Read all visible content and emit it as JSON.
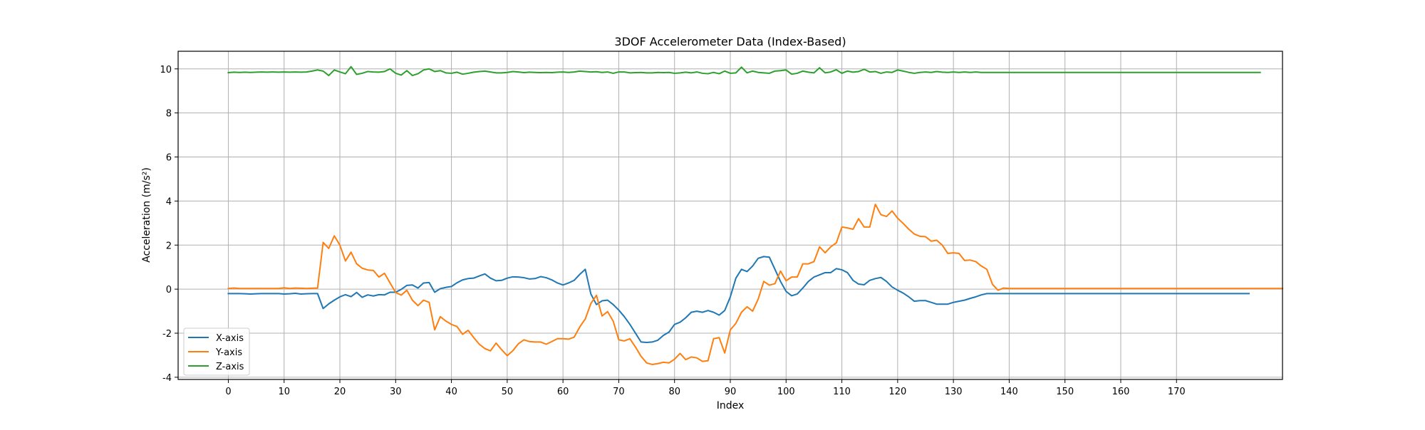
{
  "chart_data": {
    "type": "line",
    "title": "3DOF Accelerometer Data (Index-Based)",
    "xlabel": "Index",
    "ylabel": "Acceleration (m/s²)",
    "xlim": [
      -9,
      189
    ],
    "ylim": [
      -4.1,
      10.8
    ],
    "xticks": [
      0,
      10,
      20,
      30,
      40,
      50,
      60,
      70,
      80,
      90,
      100,
      110,
      120,
      130,
      140,
      150,
      160,
      170
    ],
    "yticks": [
      -4,
      -2,
      0,
      2,
      4,
      6,
      8,
      10
    ],
    "grid": true,
    "legend_position": "lower-left",
    "colors": {
      "x": "#1f77b4",
      "y": "#ff7f0e",
      "z": "#2ca02c"
    },
    "series": [
      {
        "name": "X-axis",
        "key": "x",
        "values": [
          -0.2,
          -0.2,
          -0.2,
          -0.21,
          -0.22,
          -0.21,
          -0.2,
          -0.2,
          -0.2,
          -0.2,
          -0.22,
          -0.21,
          -0.19,
          -0.22,
          -0.21,
          -0.2,
          -0.2,
          -0.88,
          -0.67,
          -0.5,
          -0.35,
          -0.25,
          -0.34,
          -0.15,
          -0.37,
          -0.26,
          -0.31,
          -0.25,
          -0.26,
          -0.14,
          -0.14,
          -0.01,
          0.17,
          0.19,
          0.05,
          0.28,
          0.3,
          -0.14,
          0.02,
          0.08,
          0.12,
          0.29,
          0.42,
          0.48,
          0.5,
          0.6,
          0.69,
          0.5,
          0.38,
          0.4,
          0.5,
          0.56,
          0.55,
          0.52,
          0.46,
          0.48,
          0.57,
          0.52,
          0.42,
          0.28,
          0.19,
          0.28,
          0.4,
          0.67,
          0.9,
          -0.22,
          -0.7,
          -0.53,
          -0.5,
          -0.7,
          -0.95,
          -1.25,
          -1.6,
          -2.0,
          -2.4,
          -2.42,
          -2.4,
          -2.32,
          -2.1,
          -1.95,
          -1.6,
          -1.5,
          -1.3,
          -1.05,
          -1.0,
          -1.05,
          -0.97,
          -1.05,
          -1.18,
          -0.97,
          -0.35,
          0.5,
          0.9,
          0.8,
          1.05,
          1.4,
          1.48,
          1.45,
          0.9,
          0.35,
          -0.1,
          -0.3,
          -0.22,
          0.05,
          0.35,
          0.55,
          0.65,
          0.75,
          0.75,
          0.93,
          0.88,
          0.75,
          0.4,
          0.23,
          0.2,
          0.4,
          0.48,
          0.53,
          0.35,
          0.1,
          -0.05,
          -0.18,
          -0.35,
          -0.55,
          -0.52,
          -0.52,
          -0.6,
          -0.68,
          -0.68,
          -0.68,
          -0.6,
          -0.55,
          -0.5,
          -0.42,
          -0.35,
          -0.26,
          -0.2,
          -0.2,
          -0.2,
          -0.2,
          -0.2,
          -0.2,
          -0.2,
          -0.2,
          -0.2,
          -0.2,
          -0.2,
          -0.2,
          -0.2,
          -0.2,
          -0.2,
          -0.2,
          -0.2,
          -0.2,
          -0.2,
          -0.2,
          -0.2,
          -0.2,
          -0.2,
          -0.2,
          -0.2,
          -0.2,
          -0.2,
          -0.2,
          -0.2,
          -0.2,
          -0.2,
          -0.2,
          -0.2,
          -0.2,
          -0.2,
          -0.2,
          -0.2,
          -0.2,
          -0.2,
          -0.2,
          -0.2,
          -0.2,
          -0.2,
          -0.2,
          -0.2,
          -0.2,
          -0.2,
          -0.2
        ]
      },
      {
        "name": "Y-axis",
        "key": "y",
        "values": [
          0.03,
          0.05,
          0.03,
          0.03,
          0.03,
          0.03,
          0.03,
          0.03,
          0.03,
          0.03,
          0.06,
          0.03,
          0.05,
          0.04,
          0.03,
          0.04,
          0.05,
          2.12,
          1.85,
          2.42,
          2.0,
          1.28,
          1.68,
          1.15,
          0.95,
          0.87,
          0.85,
          0.55,
          0.72,
          0.28,
          -0.15,
          -0.27,
          -0.05,
          -0.5,
          -0.75,
          -0.5,
          -0.6,
          -1.85,
          -1.25,
          -1.45,
          -1.6,
          -1.7,
          -2.05,
          -1.87,
          -2.2,
          -2.5,
          -2.7,
          -2.8,
          -2.45,
          -2.75,
          -3.02,
          -2.8,
          -2.48,
          -2.3,
          -2.38,
          -2.4,
          -2.4,
          -2.5,
          -2.38,
          -2.25,
          -2.25,
          -2.27,
          -2.18,
          -1.72,
          -1.35,
          -0.65,
          -0.28,
          -1.22,
          -1.02,
          -1.45,
          -2.3,
          -2.35,
          -2.25,
          -2.63,
          -3.05,
          -3.35,
          -3.42,
          -3.38,
          -3.32,
          -3.35,
          -3.18,
          -2.92,
          -3.2,
          -3.08,
          -3.12,
          -3.28,
          -3.25,
          -2.25,
          -2.2,
          -2.9,
          -1.85,
          -1.55,
          -1.05,
          -0.8,
          -1.0,
          -0.45,
          0.35,
          0.18,
          0.25,
          0.82,
          0.38,
          0.55,
          0.55,
          1.15,
          1.15,
          1.25,
          1.92,
          1.65,
          1.92,
          2.1,
          2.82,
          2.78,
          2.72,
          3.2,
          2.82,
          2.82,
          3.85,
          3.38,
          3.3,
          3.55,
          3.22,
          2.98,
          2.72,
          2.5,
          2.4,
          2.38,
          2.18,
          2.22,
          2.0,
          1.62,
          1.65,
          1.62,
          1.3,
          1.32,
          1.25,
          1.05,
          0.9,
          0.22,
          -0.05,
          0.05,
          0.03,
          0.03,
          0.03,
          0.03,
          0.03,
          0.03,
          0.03,
          0.03,
          0.03,
          0.03,
          0.03,
          0.03,
          0.03,
          0.03,
          0.03,
          0.03,
          0.03,
          0.03,
          0.03,
          0.03,
          0.03,
          0.03,
          0.03,
          0.03,
          0.03,
          0.03,
          0.03,
          0.03,
          0.03,
          0.03,
          0.03,
          0.03,
          0.03,
          0.03,
          0.03,
          0.03,
          0.03,
          0.03,
          0.03,
          0.03,
          0.03,
          0.03,
          0.03,
          0.03,
          0.03,
          0.03,
          0.03,
          0.03,
          0.03,
          0.03
        ]
      },
      {
        "name": "Z-axis",
        "key": "z",
        "values": [
          9.83,
          9.85,
          9.84,
          9.85,
          9.84,
          9.85,
          9.86,
          9.85,
          9.86,
          9.85,
          9.86,
          9.85,
          9.86,
          9.85,
          9.86,
          9.9,
          9.95,
          9.9,
          9.7,
          9.95,
          9.86,
          9.78,
          10.1,
          9.75,
          9.8,
          9.88,
          9.86,
          9.85,
          9.88,
          10.0,
          9.8,
          9.72,
          9.92,
          9.7,
          9.78,
          9.95,
          10.0,
          9.88,
          9.92,
          9.82,
          9.8,
          9.85,
          9.76,
          9.8,
          9.85,
          9.88,
          9.9,
          9.86,
          9.82,
          9.82,
          9.84,
          9.88,
          9.86,
          9.83,
          9.85,
          9.84,
          9.83,
          9.84,
          9.83,
          9.85,
          9.86,
          9.84,
          9.86,
          9.9,
          9.88,
          9.86,
          9.87,
          9.84,
          9.86,
          9.8,
          9.86,
          9.86,
          9.82,
          9.83,
          9.84,
          9.82,
          9.82,
          9.84,
          9.83,
          9.84,
          9.8,
          9.82,
          9.85,
          9.82,
          9.86,
          9.8,
          9.78,
          9.84,
          9.78,
          9.9,
          9.8,
          9.82,
          10.08,
          9.82,
          9.9,
          9.84,
          9.82,
          9.8,
          9.9,
          9.92,
          9.95,
          9.76,
          9.8,
          9.9,
          9.85,
          9.82,
          10.05,
          9.82,
          9.86,
          9.96,
          9.8,
          9.9,
          9.85,
          9.88,
          9.98,
          9.86,
          9.88,
          9.8,
          9.86,
          9.84,
          9.95,
          9.9,
          9.84,
          9.8,
          9.84,
          9.86,
          9.84,
          9.88,
          9.85,
          9.84,
          9.86,
          9.84,
          9.86,
          9.84,
          9.86,
          9.84,
          9.84,
          9.84,
          9.84,
          9.84,
          9.84,
          9.84,
          9.84,
          9.84,
          9.84,
          9.84,
          9.84,
          9.84,
          9.84,
          9.84,
          9.84,
          9.84,
          9.84,
          9.84,
          9.84,
          9.84,
          9.84,
          9.84,
          9.84,
          9.84,
          9.84,
          9.84,
          9.84,
          9.84,
          9.84,
          9.84,
          9.84,
          9.84,
          9.84,
          9.84,
          9.84,
          9.84,
          9.84,
          9.84,
          9.84,
          9.84,
          9.84,
          9.84,
          9.84,
          9.84,
          9.84,
          9.84,
          9.84,
          9.84,
          9.84,
          9.84
        ]
      }
    ]
  }
}
